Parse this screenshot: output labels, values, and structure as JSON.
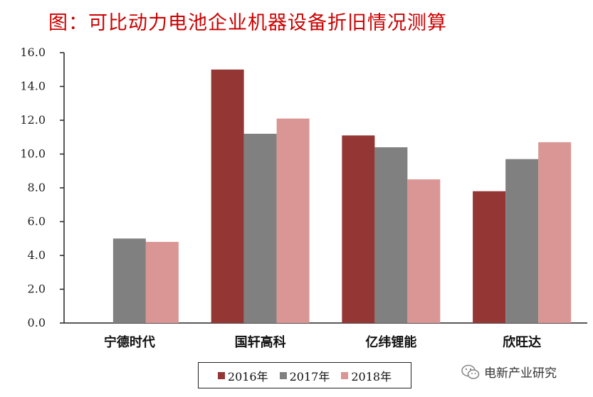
{
  "colors": {
    "title": "#cc0000",
    "axis": "#222222"
  },
  "watermark": {
    "icon": "wechat-icon",
    "text": "电新产业研究"
  },
  "chart_data": {
    "type": "bar",
    "title": "图：可比动力电池企业机器设备折旧情况测算",
    "xlabel": "",
    "ylabel": "",
    "ylim": [
      0,
      16
    ],
    "yticks": [
      "0.0",
      "2.0",
      "4.0",
      "6.0",
      "8.0",
      "10.0",
      "12.0",
      "14.0",
      "16.0"
    ],
    "categories": [
      "宁德时代",
      "国轩高科",
      "亿纬锂能",
      "欣旺达"
    ],
    "series": [
      {
        "name": "2016年",
        "color": "#943634",
        "values": [
          null,
          15.0,
          11.1,
          7.8
        ]
      },
      {
        "name": "2017年",
        "color": "#808080",
        "values": [
          5.0,
          11.2,
          10.4,
          9.7
        ]
      },
      {
        "name": "2018年",
        "color": "#d99694",
        "values": [
          4.8,
          12.1,
          8.5,
          10.7
        ]
      }
    ],
    "grid": false,
    "legend": "bottom"
  }
}
